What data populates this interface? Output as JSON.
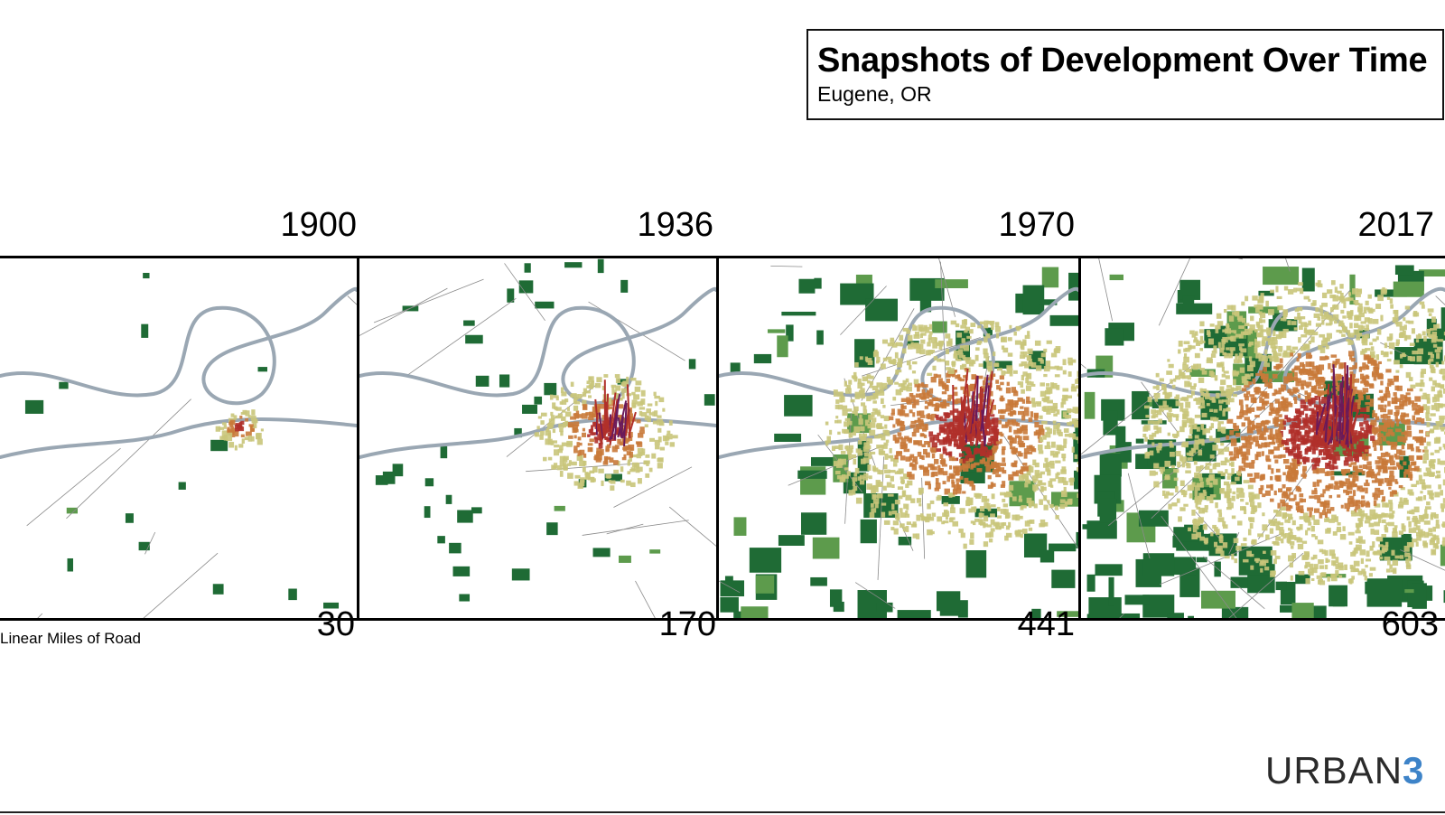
{
  "header": {
    "title": "Snapshots of Development Over Time",
    "subtitle": "Eugene, OR"
  },
  "snapshots": [
    {
      "year": "1900",
      "miles": "30"
    },
    {
      "year": "1936",
      "miles": "170"
    },
    {
      "year": "1970",
      "miles": "441"
    },
    {
      "year": "2017",
      "miles": "603"
    }
  ],
  "road_label": "Linear Miles of Road",
  "logo": {
    "text": "URBAN",
    "number": "3"
  },
  "colors": {
    "farmland": "#1f6b35",
    "river": "#9aa7b3",
    "road": "#8a8a8a",
    "development_low": "#c9c57a",
    "development_mid": "#c97a3a",
    "development_high": "#b0302a",
    "peak": "#6a1a5a",
    "logo_accent": "#3d83c8"
  }
}
